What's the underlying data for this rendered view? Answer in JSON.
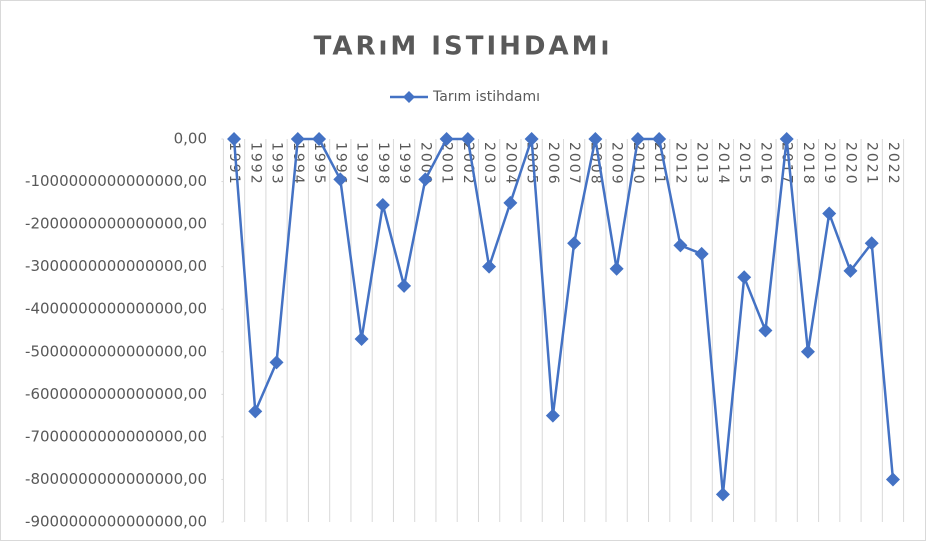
{
  "chart_data": {
    "type": "line",
    "title": "TARıM ISTIHDAMı",
    "categories": [
      "1991",
      "1992",
      "1993",
      "1994",
      "1995",
      "1996",
      "1997",
      "1998",
      "1999",
      "2000",
      "2001",
      "2002",
      "2003",
      "2004",
      "2005",
      "2006",
      "2007",
      "2008",
      "2009",
      "2010",
      "2011",
      "2012",
      "2013",
      "2014",
      "2015",
      "2016",
      "2017",
      "2018",
      "2019",
      "2020",
      "2021",
      "2022"
    ],
    "series": [
      {
        "name": "Tarım istihdamı",
        "color": "#4472c4",
        "values": [
          0,
          -6400000000000000,
          -5250000000000000,
          0,
          0,
          -950000000000000,
          -4700000000000000,
          -1550000000000000,
          -3450000000000000,
          -950000000000000,
          0,
          0,
          -3000000000000000,
          -1500000000000000,
          0,
          -6500000000000000,
          -2450000000000000,
          0,
          -3050000000000000,
          0,
          0,
          -2500000000000000,
          -2700000000000000,
          -8350000000000000,
          -3250000000000000,
          -4500000000000000,
          0,
          -5000000000000000,
          -1750000000000000,
          -3100000000000000,
          -2450000000000000,
          -8000000000000000
        ]
      }
    ],
    "ylim": [
      -9000000000000000,
      0
    ],
    "yticks": [
      {
        "value": 0,
        "label": "0,00"
      },
      {
        "value": -1000000000000000,
        "label": "-1000000000000000,00"
      },
      {
        "value": -2000000000000000,
        "label": "-2000000000000000,00"
      },
      {
        "value": -3000000000000000,
        "label": "-3000000000000000,00"
      },
      {
        "value": -4000000000000000,
        "label": "-4000000000000000,00"
      },
      {
        "value": -5000000000000000,
        "label": "-5000000000000000,00"
      },
      {
        "value": -6000000000000000,
        "label": "-6000000000000000,00"
      },
      {
        "value": -7000000000000000,
        "label": "-7000000000000000,00"
      },
      {
        "value": -8000000000000000,
        "label": "-8000000000000000,00"
      },
      {
        "value": -9000000000000000,
        "label": "-9000000000000000,00"
      }
    ],
    "legend": "top"
  }
}
